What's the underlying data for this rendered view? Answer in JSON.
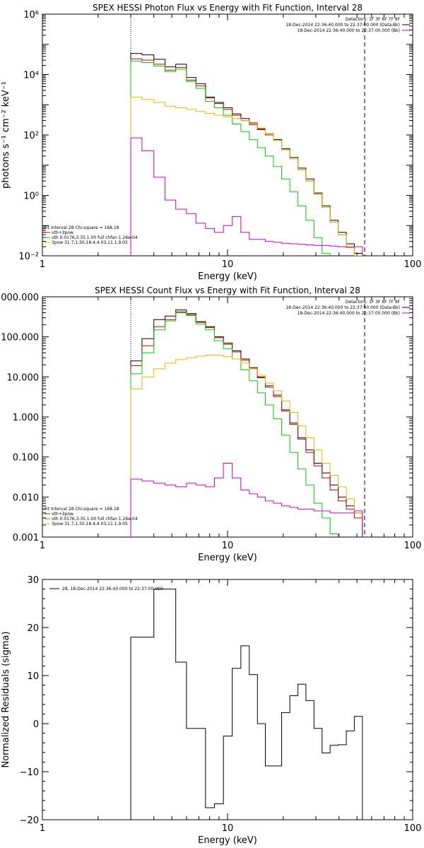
{
  "chart_data": [
    {
      "id": "photon",
      "type": "line",
      "title": "SPEX HESSI Photon Flux vs Energy with Fit Function, Interval 28",
      "xlabel": "Energy (keV)",
      "ylabel": "photons s⁻¹ cm⁻² keV⁻¹",
      "xscale": "log",
      "yscale": "log",
      "xlim": [
        1,
        100
      ],
      "ylim": [
        0.01,
        1000000
      ],
      "xticks": [
        {
          "v": 1,
          "label": "1"
        },
        {
          "v": 10,
          "label": "10"
        },
        {
          "v": 100,
          "label": "100"
        }
      ],
      "yticks": [
        {
          "v": 0.01,
          "label": "10⁻²"
        },
        {
          "v": 1,
          "label": "10⁰"
        },
        {
          "v": 100,
          "label": "10²"
        },
        {
          "v": 10000,
          "label": "10⁴"
        },
        {
          "v": 1000000,
          "label": "10⁶"
        }
      ],
      "vlines": [
        {
          "x": 3,
          "style": "dotted"
        },
        {
          "x": 55,
          "style": "dashed"
        }
      ],
      "legend_topright": [
        "Detectors: 1F 3F 6F 7F 9F",
        "18-Dec-2014 22:36:40.000 to 22:37:00.000 (Data-Bk)",
        "18-Dec-2014 22:36:40.000 to 22:37:00.000 (Bk)"
      ],
      "legend_bottomleft": [
        "Fit Interval 28   Chi-square = 168.18",
        "vth+3pow",
        "vth 0.0176,3.35,1.00  full chfan 1.26e-04",
        "3pow 31.7,1.50,18.4,4.03,11.1,9.05"
      ],
      "bin_edges": [
        3,
        3.45,
        4,
        4.6,
        5.25,
        6,
        6.75,
        7.6,
        8.5,
        9.5,
        10.6,
        11.8,
        13.1,
        14.5,
        16,
        17.7,
        19.6,
        21.7,
        24,
        26.5,
        29.3,
        32.4,
        35.8,
        39.6,
        43.8,
        48.4,
        53.5
      ],
      "series": [
        {
          "name": "18-Dec-2014 22:36:40.000 to 22:37:00.000 (Data-Bk)",
          "color": "#000000",
          "values": [
            50000,
            45000,
            32000,
            18000,
            22000,
            8000,
            5000,
            1800,
            1200,
            800,
            500,
            350,
            250,
            160,
            110,
            70,
            35,
            18,
            8,
            3.5,
            1.2,
            0.45,
            0.15,
            0.06,
            0.025,
            0.012
          ]
        },
        {
          "name": "vth+3pow",
          "color": "#d40000",
          "values": [
            33000,
            30000,
            22000,
            14000,
            17000,
            6500,
            4200,
            1700,
            1100,
            700,
            450,
            300,
            220,
            150,
            100,
            65,
            32,
            16,
            7,
            3,
            1.1,
            0.4,
            0.13,
            0.05,
            0.02,
            0.01
          ]
        },
        {
          "name": "vth",
          "color": "#00d000",
          "values": [
            28000,
            25000,
            19000,
            12500,
            15000,
            5800,
            3500,
            1300,
            800,
            450,
            230,
            130,
            70,
            38,
            20,
            9,
            3.5,
            1.3,
            0.45,
            0.15,
            0.04,
            0.012
          ]
        },
        {
          "name": "3pow",
          "color": "#e6b800",
          "values": [
            1800,
            1500,
            1200,
            900,
            800,
            700,
            600,
            520,
            450,
            400,
            350,
            300,
            240,
            170,
            110,
            65,
            32,
            16,
            7,
            3,
            1.1,
            0.4,
            0.13,
            0.05,
            0.02,
            0.01
          ]
        },
        {
          "name": "18-Dec-2014 22:36:40.000 to 22:37:00.000 (Bk)",
          "color": "#cc00cc",
          "values": [
            80,
            30,
            4,
            0.7,
            0.35,
            0.25,
            0.12,
            0.08,
            0.06,
            0.1,
            0.2,
            0.06,
            0.035,
            0.035,
            0.03,
            0.028,
            0.026,
            0.025,
            0.024,
            0.023,
            0.022,
            0.022,
            0.021,
            0.02,
            0.019,
            0.02
          ]
        }
      ]
    },
    {
      "id": "count",
      "type": "line",
      "title": "SPEX HESSI Count Flux vs Energy with Fit Function, Interval 28",
      "xlabel": "Energy (keV)",
      "ylabel": "",
      "xscale": "log",
      "yscale": "log",
      "xlim": [
        1,
        100
      ],
      "ylim": [
        0.001,
        1000
      ],
      "xticks": [
        {
          "v": 1,
          "label": "1"
        },
        {
          "v": 10,
          "label": "10"
        },
        {
          "v": 100,
          "label": "100"
        }
      ],
      "yticks": [
        {
          "v": 0.001,
          "label": "0.001"
        },
        {
          "v": 0.01,
          "label": "0.010"
        },
        {
          "v": 0.1,
          "label": "0.100"
        },
        {
          "v": 1,
          "label": "1.000"
        },
        {
          "v": 10,
          "label": "10.000"
        },
        {
          "v": 100,
          "label": "100.000"
        },
        {
          "v": 1000,
          "label": "1000.000"
        }
      ],
      "vlines": [
        {
          "x": 3,
          "style": "dotted"
        },
        {
          "x": 55,
          "style": "dashed"
        }
      ],
      "legend_topright": [
        "Detectors: 1F 3F 6F 7F 9F",
        "18-Dec-2014 22:36:40.000 to 22:37:00.000 (Data-Bk)",
        "18-Dec-2014 22:36:40.000 to 22:37:00.000 (Bk)"
      ],
      "legend_bottomleft": [
        "Fit Interval 28   Chi-square = 168.18",
        "vth+3pow",
        "vth 0.0176,3.35,1.00  full chfan 1.26e-04",
        "3pow 31.7,1.50,18.4,4.03,11.1,9.05"
      ],
      "bin_edges": [
        3,
        3.45,
        4,
        4.6,
        5.25,
        6,
        6.75,
        7.6,
        8.5,
        9.5,
        10.6,
        11.8,
        13.1,
        14.5,
        16,
        17.7,
        19.6,
        21.7,
        24,
        26.5,
        29.3,
        32.4,
        35.8,
        39.6,
        43.8,
        48.4,
        53.5
      ],
      "series": [
        {
          "name": "18-Dec-2014 22:36:40.000 to 22:37:00.000 (Data-Bk)",
          "color": "#000000",
          "values": [
            25,
            90,
            270,
            330,
            470,
            380,
            240,
            180,
            100,
            70,
            45,
            28,
            17,
            10,
            6,
            3.5,
            1.5,
            0.7,
            0.3,
            0.15,
            0.07,
            0.04,
            0.02,
            0.01,
            0.006,
            0.004
          ]
        },
        {
          "name": "vth+3pow",
          "color": "#d40000",
          "values": [
            19,
            60,
            180,
            270,
            420,
            360,
            230,
            170,
            95,
            65,
            42,
            26,
            16,
            9.5,
            5.5,
            3.2,
            1.4,
            0.65,
            0.28,
            0.13,
            0.06,
            0.03,
            0.015,
            0.008,
            0.005,
            0.003
          ]
        },
        {
          "name": "vth",
          "color": "#00d000",
          "values": [
            12,
            40,
            150,
            250,
            400,
            340,
            210,
            150,
            80,
            50,
            28,
            15,
            8,
            4,
            2,
            0.9,
            0.35,
            0.13,
            0.05,
            0.02,
            0.007,
            0.003,
            0.0012
          ]
        },
        {
          "name": "3pow",
          "color": "#e6b800",
          "values": [
            5,
            10,
            16,
            22,
            27,
            30,
            33,
            35,
            35,
            32,
            28,
            22,
            16,
            11,
            7,
            4.5,
            2.5,
            1.3,
            0.6,
            0.3,
            0.15,
            0.07,
            0.035,
            0.018,
            0.009,
            0.004
          ]
        },
        {
          "name": "18-Dec-2014 22:36:40.000 to 22:37:00.000 (Bk)",
          "color": "#cc00cc",
          "values": [
            0.028,
            0.025,
            0.022,
            0.02,
            0.018,
            0.022,
            0.02,
            0.018,
            0.03,
            0.07,
            0.03,
            0.015,
            0.012,
            0.01,
            0.008,
            0.007,
            0.006,
            0.0055,
            0.005,
            0.005,
            0.0045,
            0.0045,
            0.004,
            0.004,
            0.004,
            0.0045
          ]
        }
      ]
    },
    {
      "id": "resid",
      "type": "line",
      "title": "",
      "xlabel": "Energy (keV)",
      "ylabel": "Normalized Residuals (sigma)",
      "xscale": "log",
      "yscale": "linear",
      "xlim": [
        1,
        100
      ],
      "ylim": [
        -20,
        30
      ],
      "xticks": [
        {
          "v": 1,
          "label": "1"
        },
        {
          "v": 10,
          "label": "10"
        },
        {
          "v": 100,
          "label": "100"
        }
      ],
      "yticks": [
        {
          "v": -20,
          "label": "−20"
        },
        {
          "v": -10,
          "label": "−10"
        },
        {
          "v": 0,
          "label": "0"
        },
        {
          "v": 10,
          "label": "10"
        },
        {
          "v": 20,
          "label": "20"
        },
        {
          "v": 30,
          "label": "30"
        }
      ],
      "vlines": [],
      "legend_topright": [],
      "legend_bottomleft": [],
      "legend_topleft": [
        "28, 18-Dec-2014 22:36:40.000 to 22:37:00.000"
      ],
      "bin_edges": [
        3,
        3.45,
        4,
        4.6,
        5.25,
        6,
        6.75,
        7.6,
        8.5,
        9.5,
        10.6,
        11.8,
        13.1,
        14.5,
        16,
        17.7,
        19.6,
        21.7,
        24,
        26.5,
        29.3,
        32.4,
        35.8,
        39.6,
        43.8,
        48.4,
        53.5
      ],
      "series": [
        {
          "name": "28, 18-Dec-2014 22:36:40.000 to 22:37:00.000",
          "color": "#000000",
          "values": [
            18,
            18,
            28,
            28,
            12.8,
            -1,
            -1,
            -17.5,
            -16.7,
            -2.6,
            11.5,
            16.2,
            10.2,
            0,
            -8.8,
            -8.8,
            2.3,
            5.8,
            8.2,
            4.8,
            -1,
            -6.1,
            -4.5,
            -4.4,
            -1.5,
            1.5
          ]
        }
      ]
    }
  ]
}
